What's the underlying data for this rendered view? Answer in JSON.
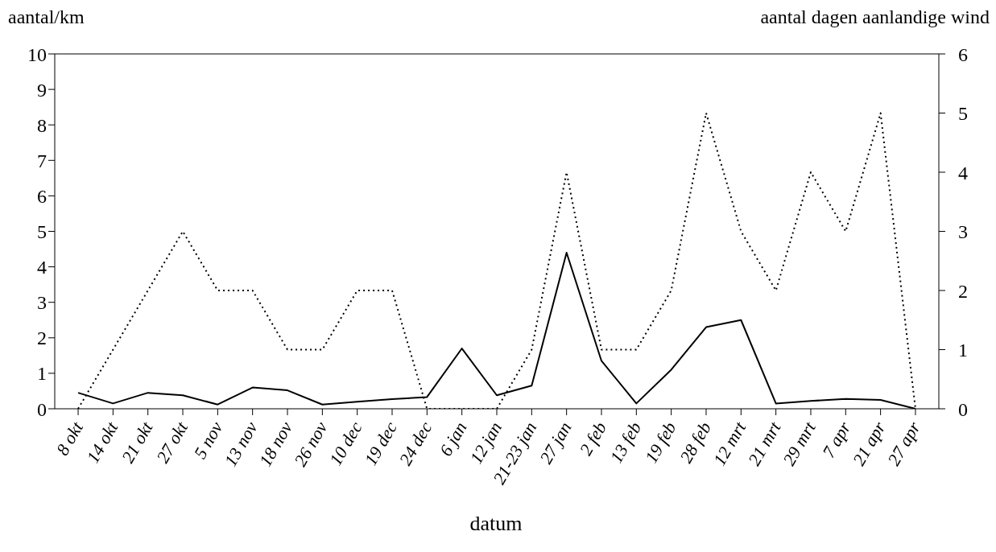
{
  "chart_data": {
    "type": "line",
    "xlabel": "datum",
    "ylabel": "aantal/km",
    "y2label": "aantal dagen aanlandige wind",
    "categories": [
      "8 okt",
      "14 okt",
      "21 okt",
      "27 okt",
      "5 nov",
      "13 nov",
      "18 nov",
      "26 nov",
      "10 dec",
      "19 dec",
      "24 dec",
      "6 jan",
      "12 jan",
      "21-23 jan",
      "27 jan",
      "2 feb",
      "13 feb",
      "19 feb",
      "28 feb",
      "12 mrt",
      "21 mrt",
      "29 mrt",
      "7 apr",
      "21 apr",
      "27 apr"
    ],
    "series": [
      {
        "color": "#000000",
        "line_style": "solid",
        "values": [
          0.45,
          0.15,
          0.45,
          0.38,
          0.12,
          0.6,
          0.52,
          0.12,
          0.2,
          0.27,
          0.33,
          1.7,
          0.38,
          0.65,
          4.4,
          1.35,
          0.15,
          1.1,
          2.3,
          2.5,
          0.15,
          0.22,
          0.28,
          0.25,
          0
        ]
      },
      {
        "color": "#000000",
        "line_style": "dotted",
        "axis": "y2",
        "values": [
          0,
          1,
          2,
          3,
          2,
          2,
          1,
          1,
          2,
          2,
          0,
          0,
          0,
          1,
          4,
          1,
          1,
          2,
          5,
          3,
          2,
          4,
          3,
          5,
          0
        ]
      }
    ],
    "ylim": [
      0,
      10
    ],
    "yticks": [
      0,
      1,
      2,
      3,
      4,
      5,
      6,
      7,
      8,
      9,
      10
    ],
    "y2lim": [
      0,
      6
    ],
    "y2ticks": [
      0,
      1,
      2,
      3,
      4,
      5,
      6
    ],
    "grid": false,
    "legend": false,
    "marker": "none"
  }
}
